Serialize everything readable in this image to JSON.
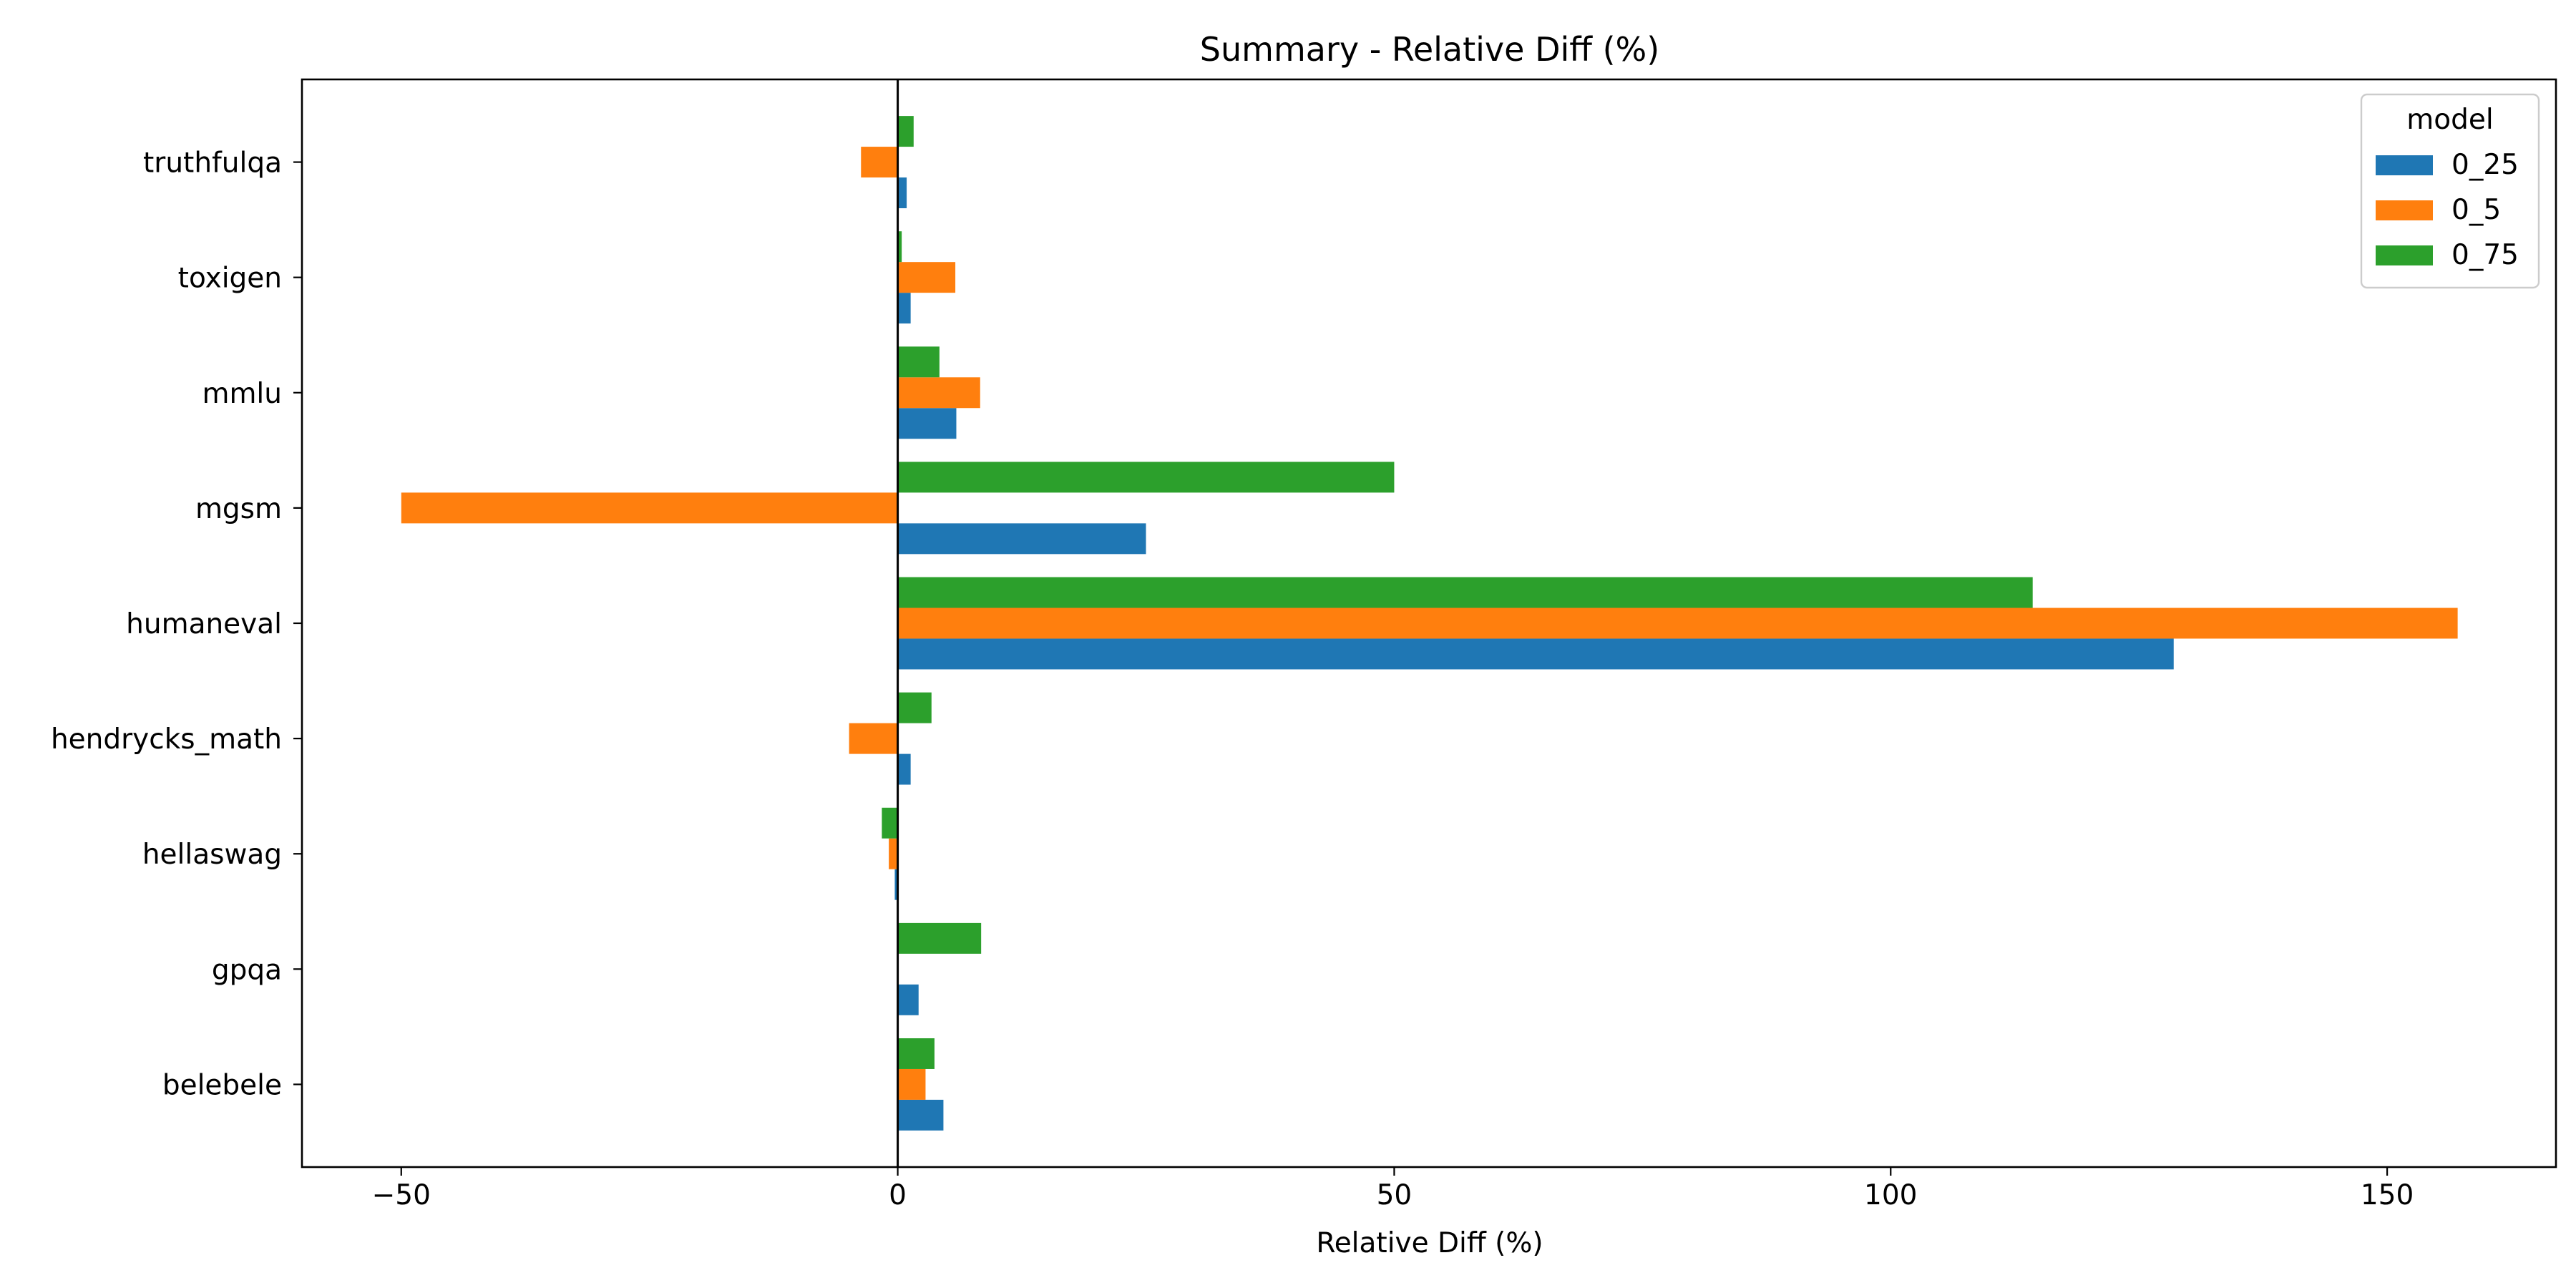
{
  "chart_data": {
    "type": "bar",
    "orientation": "horizontal",
    "title": "Summary - Relative Diff (%)",
    "xlabel": "Relative Diff (%)",
    "ylabel": "",
    "xlim": [
      -60,
      167
    ],
    "xticks": [
      -50,
      0,
      50,
      100,
      150
    ],
    "xtick_labels": [
      "−50",
      "0",
      "50",
      "100",
      "150"
    ],
    "grid": false,
    "legend": {
      "title": "model",
      "placement": "top-right"
    },
    "categories": [
      "belebele",
      "gpqa",
      "hellaswag",
      "hendrycks_math",
      "humaneval",
      "mgsm",
      "mmlu",
      "toxigen",
      "truthfulqa"
    ],
    "series": [
      {
        "name": "0_25",
        "color": "#1f77b4",
        "values": [
          4.6,
          2.1,
          -0.3,
          1.3,
          128.5,
          25.0,
          5.9,
          1.3,
          0.9
        ]
      },
      {
        "name": "0_5",
        "color": "#ff7f0e",
        "values": [
          2.8,
          0.0,
          -0.9,
          -4.9,
          157.1,
          -50.0,
          8.3,
          5.8,
          -3.7
        ]
      },
      {
        "name": "0_75",
        "color": "#2ca02c",
        "values": [
          3.7,
          8.4,
          -1.6,
          3.4,
          114.3,
          50.0,
          4.2,
          0.4,
          1.6
        ]
      }
    ]
  }
}
